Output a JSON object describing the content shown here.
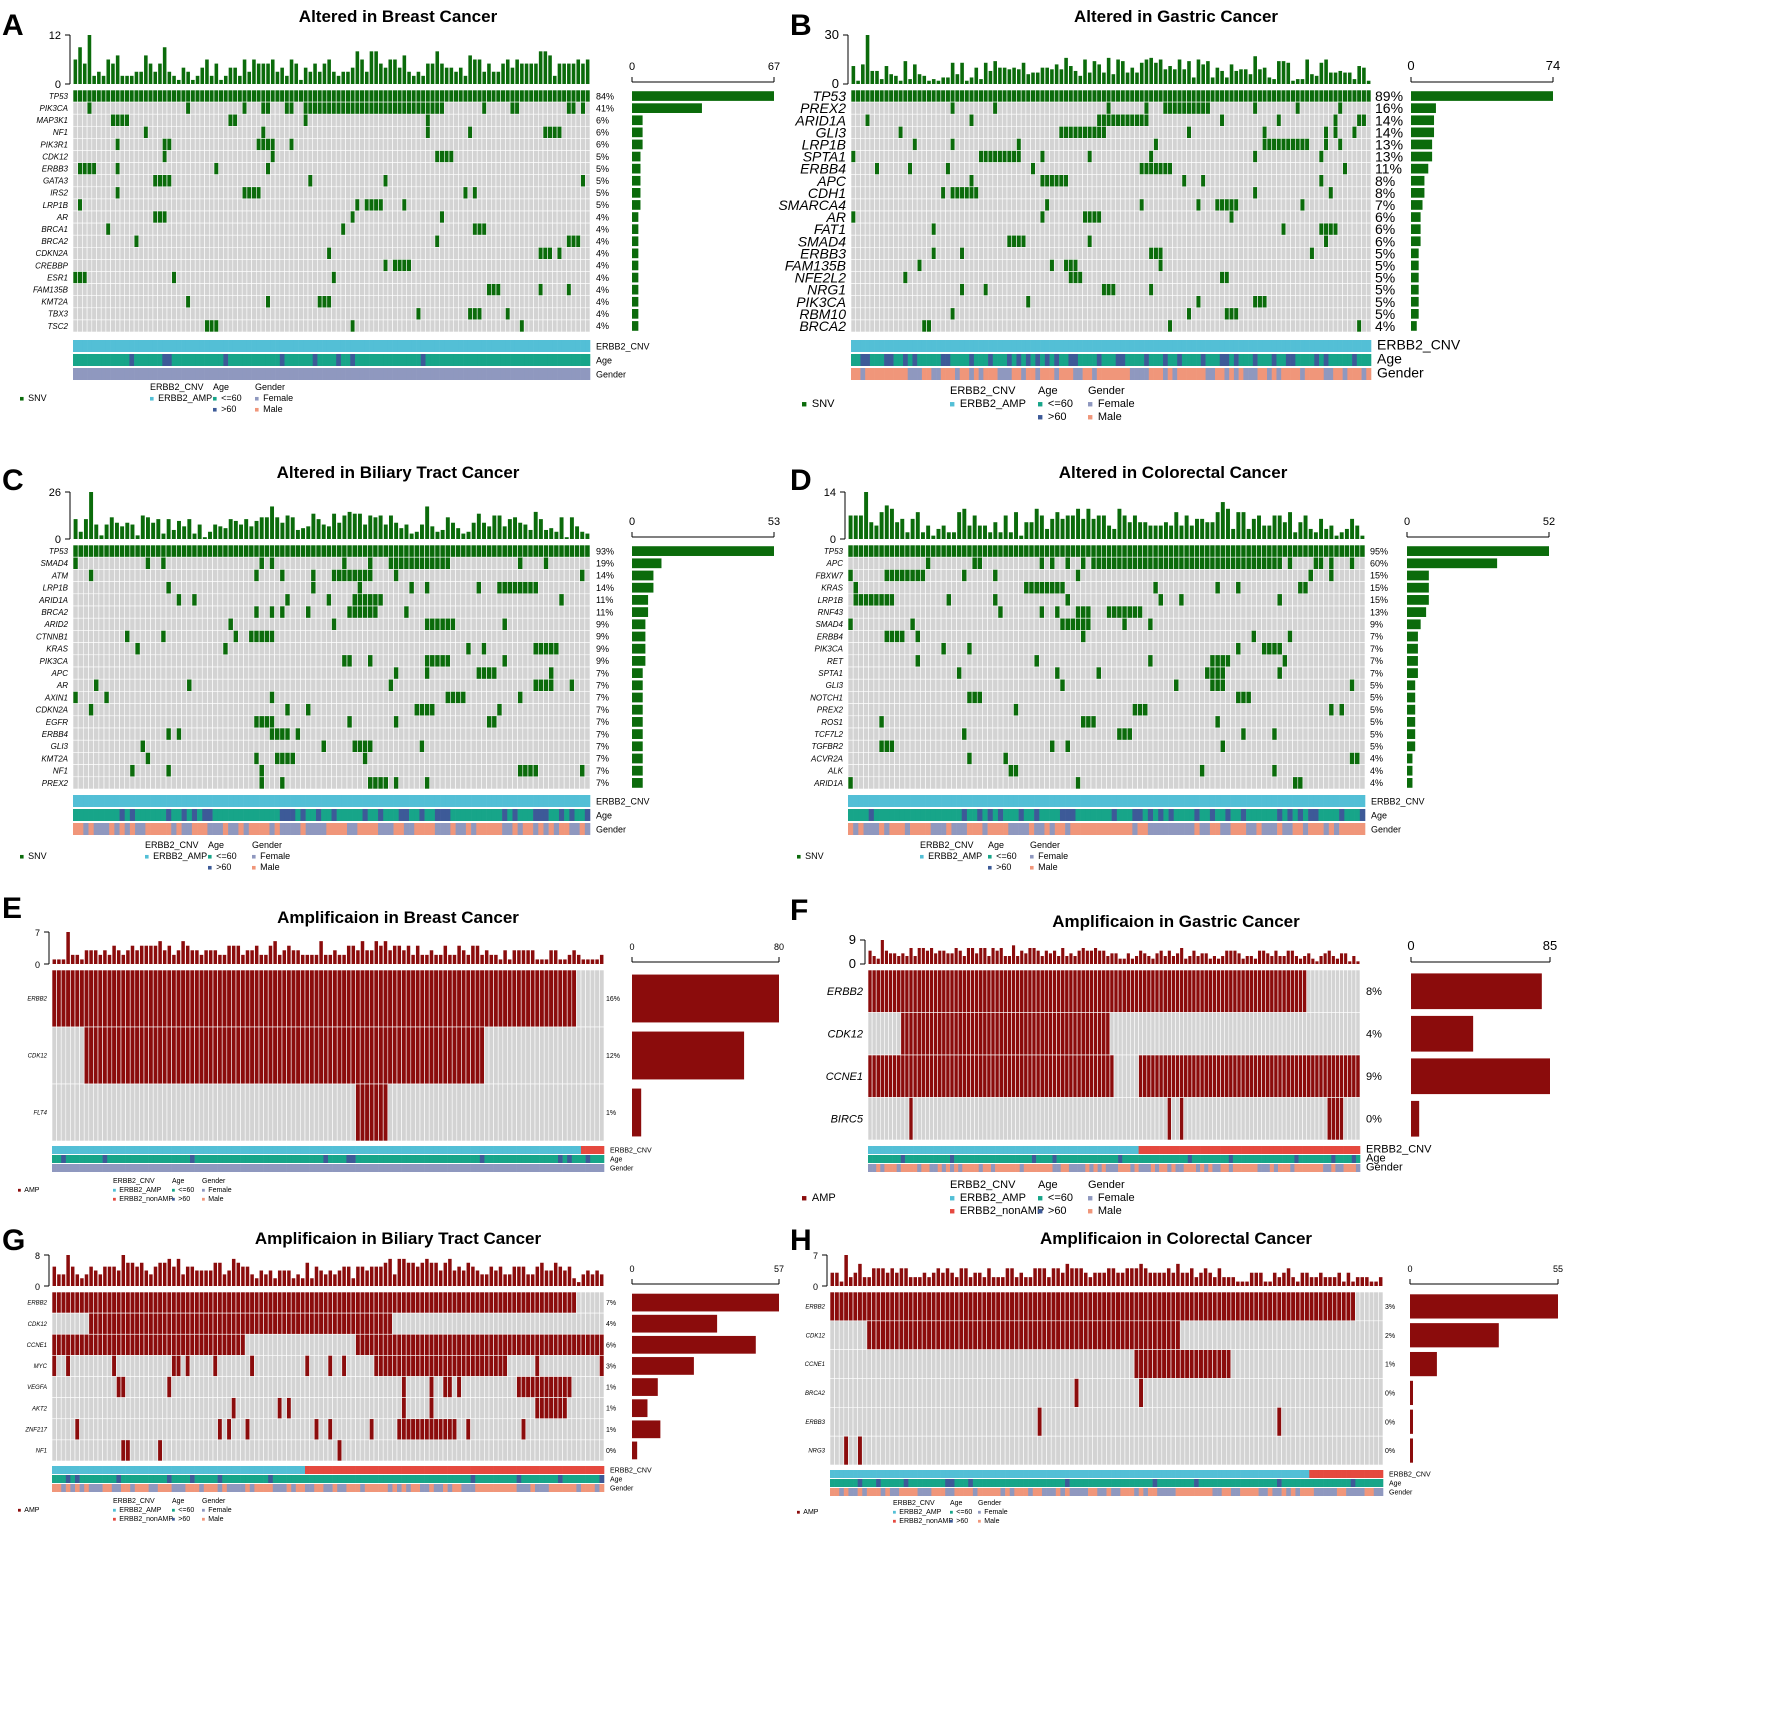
{
  "colors": {
    "snv": "#0b6b0b",
    "amp": "#8b0c0c",
    "na": "#d3d3d3",
    "erbb2_amp": "#53bfd6",
    "erbb2_nonamp": "#e5493f",
    "age_le60": "#17a589",
    "age_gt60": "#3d5a98",
    "female": "#8f98bf",
    "male": "#f0967a"
  },
  "legend_text": {
    "erbb2_cnv": "ERBB2_CNV",
    "age": "Age",
    "gender": "Gender",
    "erbb2_amp": "ERBB2_AMP",
    "erbb2_nonamp": "ERBB2_nonAMP",
    "le60": "<=60",
    "gt60": ">60",
    "female": "Female",
    "male": "Male"
  },
  "chart_data": [
    {
      "panel": "A",
      "type": "heatmap",
      "title": "Altered in Breast Cancer",
      "alteration": "SNV",
      "top_max": 12,
      "bar_max": 67,
      "genes": [
        "TP53",
        "PIK3CA",
        "MAP3K1",
        "NF1",
        "PIK3R1",
        "CDK12",
        "ERBB3",
        "GATA3",
        "IRS2",
        "LRP1B",
        "AR",
        "BRCA1",
        "BRCA2",
        "CDKN2A",
        "CREBBP",
        "ESR1",
        "FAM135B",
        "KMT2A",
        "TBX3",
        "TSC2"
      ],
      "pct": [
        "84%",
        "41%",
        "6%",
        "6%",
        "6%",
        "5%",
        "5%",
        "5%",
        "5%",
        "5%",
        "4%",
        "4%",
        "4%",
        "4%",
        "4%",
        "4%",
        "4%",
        "4%",
        "4%",
        "4%"
      ],
      "counts": [
        67,
        33,
        5,
        5,
        5,
        4,
        4,
        4,
        4,
        4,
        3,
        3,
        3,
        3,
        3,
        3,
        3,
        3,
        3,
        3
      ],
      "annotation_rows": [
        "ERBB2_CNV",
        "Age",
        "Gender"
      ]
    },
    {
      "panel": "B",
      "type": "heatmap",
      "title": "Altered in Gastric Cancer",
      "alteration": "SNV",
      "top_max": 30,
      "bar_max": 74,
      "genes": [
        "TP53",
        "PREX2",
        "ARID1A",
        "GLI3",
        "LRP1B",
        "SPTA1",
        "ERBB4",
        "APC",
        "CDH1",
        "SMARCA4",
        "AR",
        "FAT1",
        "SMAD4",
        "ERBB3",
        "FAM135B",
        "NFE2L2",
        "NRG1",
        "PIK3CA",
        "RBM10",
        "BRCA2"
      ],
      "pct": [
        "89%",
        "16%",
        "14%",
        "14%",
        "13%",
        "13%",
        "11%",
        "8%",
        "8%",
        "7%",
        "6%",
        "6%",
        "6%",
        "5%",
        "5%",
        "5%",
        "5%",
        "5%",
        "5%",
        "4%"
      ],
      "counts": [
        74,
        13,
        12,
        12,
        11,
        11,
        9,
        7,
        7,
        6,
        5,
        5,
        5,
        4,
        4,
        4,
        4,
        4,
        4,
        3
      ],
      "annotation_rows": [
        "ERBB2_CNV",
        "Age",
        "Gender"
      ]
    },
    {
      "panel": "C",
      "type": "heatmap",
      "title": "Altered in Biliary Tract Cancer",
      "alteration": "SNV",
      "top_max": 26,
      "bar_max": 53,
      "genes": [
        "TP53",
        "SMAD4",
        "ATM",
        "LRP1B",
        "ARID1A",
        "BRCA2",
        "ARID2",
        "CTNNB1",
        "KRAS",
        "PIK3CA",
        "APC",
        "AR",
        "AXIN1",
        "CDKN2A",
        "EGFR",
        "ERBB4",
        "GLI3",
        "KMT2A",
        "NF1",
        "PREX2"
      ],
      "pct": [
        "93%",
        "19%",
        "14%",
        "14%",
        "11%",
        "11%",
        "9%",
        "9%",
        "9%",
        "9%",
        "7%",
        "7%",
        "7%",
        "7%",
        "7%",
        "7%",
        "7%",
        "7%",
        "7%",
        "7%"
      ],
      "counts": [
        53,
        11,
        8,
        8,
        6,
        6,
        5,
        5,
        5,
        5,
        4,
        4,
        4,
        4,
        4,
        4,
        4,
        4,
        4,
        4
      ],
      "annotation_rows": [
        "ERBB2_CNV",
        "Age",
        "Gender"
      ]
    },
    {
      "panel": "D",
      "type": "heatmap",
      "title": "Altered in Colorectal Cancer",
      "alteration": "SNV",
      "top_max": 14,
      "bar_max": 52,
      "genes": [
        "TP53",
        "APC",
        "FBXW7",
        "KRAS",
        "LRP1B",
        "RNF43",
        "SMAD4",
        "ERBB4",
        "PIK3CA",
        "RET",
        "SPTA1",
        "GLI3",
        "NOTCH1",
        "PREX2",
        "ROS1",
        "TCF7L2",
        "TGFBR2",
        "ACVR2A",
        "ALK",
        "ARID1A"
      ],
      "pct": [
        "95%",
        "60%",
        "15%",
        "15%",
        "15%",
        "13%",
        "9%",
        "7%",
        "7%",
        "7%",
        "7%",
        "5%",
        "5%",
        "5%",
        "5%",
        "5%",
        "5%",
        "4%",
        "4%",
        "4%"
      ],
      "counts": [
        52,
        33,
        8,
        8,
        8,
        7,
        5,
        4,
        4,
        4,
        4,
        3,
        3,
        3,
        3,
        3,
        3,
        2,
        2,
        2
      ],
      "annotation_rows": [
        "ERBB2_CNV",
        "Age",
        "Gender"
      ]
    },
    {
      "panel": "E",
      "type": "heatmap",
      "title": "Amplificaion in Breast Cancer",
      "alteration": "AMP",
      "top_max": 7,
      "bar_max": 80,
      "genes": [
        "ERBB2",
        "CDK12",
        "FLT4"
      ],
      "pct": [
        "16%",
        "12%",
        "1%"
      ],
      "counts": [
        80,
        61,
        5
      ],
      "annotation_rows": [
        "ERBB2_CNV",
        "Age",
        "Gender"
      ]
    },
    {
      "panel": "F",
      "type": "heatmap",
      "title": "Amplificaion in Gastric Cancer",
      "alteration": "AMP",
      "top_max": 9,
      "bar_max": 85,
      "genes": [
        "ERBB2",
        "CDK12",
        "CCNE1",
        "BIRC5"
      ],
      "pct": [
        "8%",
        "4%",
        "9%",
        "0%"
      ],
      "counts": [
        80,
        38,
        85,
        5
      ],
      "annotation_rows": [
        "ERBB2_CNV",
        "Age",
        "Gender"
      ]
    },
    {
      "panel": "G",
      "type": "heatmap",
      "title": "Amplificaion in Biliary Tract Cancer",
      "alteration": "AMP",
      "top_max": 8,
      "bar_max": 57,
      "genes": [
        "ERBB2",
        "CDK12",
        "CCNE1",
        "MYC",
        "VEGFA",
        "AKT2",
        "ZNF217",
        "NF1"
      ],
      "pct": [
        "7%",
        "4%",
        "6%",
        "3%",
        "1%",
        "1%",
        "1%",
        "0%"
      ],
      "counts": [
        57,
        33,
        48,
        24,
        10,
        6,
        11,
        2
      ],
      "annotation_rows": [
        "ERBB2_CNV",
        "Age",
        "Gender"
      ]
    },
    {
      "panel": "H",
      "type": "heatmap",
      "title": "Amplificaion in Colorectal Cancer",
      "alteration": "AMP",
      "top_max": 7,
      "bar_max": 55,
      "genes": [
        "ERBB2",
        "CDK12",
        "CCNE1",
        "BRCA2",
        "ERBB3",
        "NRG3"
      ],
      "pct": [
        "3%",
        "2%",
        "1%",
        "0%",
        "0%",
        "0%"
      ],
      "counts": [
        55,
        33,
        10,
        1,
        1,
        1
      ],
      "annotation_rows": [
        "ERBB2_CNV",
        "Age",
        "Gender"
      ]
    }
  ]
}
